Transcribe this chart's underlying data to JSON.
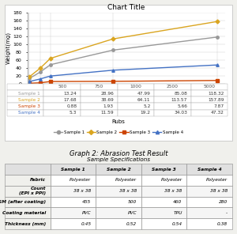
{
  "title": "Chart Title",
  "xlabel": "Rubs",
  "ylabel": "Weight(mg)",
  "x_values": [
    500,
    750,
    1000,
    2500,
    5000
  ],
  "samples": {
    "Sample 1": [
      13.24,
      28.96,
      47.99,
      85.08,
      118.32
    ],
    "Sample 2": [
      17.68,
      38.69,
      64.11,
      113.57,
      157.89
    ],
    "Sample 3": [
      0.88,
      1.93,
      5.2,
      5.66,
      7.87
    ],
    "Sample 4": [
      5.3,
      11.59,
      19.2,
      34.03,
      47.32
    ]
  },
  "colors": {
    "Sample 1": "#999999",
    "Sample 2": "#DAA520",
    "Sample 3": "#CC4400",
    "Sample 4": "#4472C4"
  },
  "markers": {
    "Sample 1": "o",
    "Sample 2": "D",
    "Sample 3": "s",
    "Sample 4": "^"
  },
  "ylim": [
    0,
    180
  ],
  "yticks": [
    0,
    20,
    40,
    60,
    80,
    100,
    120,
    140,
    160,
    180
  ],
  "inline_table": {
    "col_header": [
      "",
      "500",
      "750",
      "1000",
      "2500",
      "5000"
    ],
    "rows": [
      [
        "Sample 1",
        "13.24",
        "28.96",
        "47.99",
        "85.08",
        "118.32"
      ],
      [
        "Sample 2",
        "17.68",
        "38.69",
        "64.11",
        "113.57",
        "157.89"
      ],
      [
        "Sample 3",
        "0.88",
        "1.93",
        "5.2",
        "5.66",
        "7.87"
      ],
      [
        "Sample 4",
        "5.3",
        "11.59",
        "19.2",
        "34.03",
        "47.32"
      ]
    ]
  },
  "table_data": {
    "col_labels": [
      "",
      "Sample 1",
      "Sample 2",
      "Sample 3",
      "Sample 4"
    ],
    "rows": [
      [
        "Fabric",
        "Polyester",
        "Polyester",
        "Polyester",
        "Polyester"
      ],
      [
        "Count\n(EPI x PPI)",
        "38 x 38",
        "38 x 38",
        "38 x 38",
        "38 x 38"
      ],
      [
        "GSM (after coating)",
        "455",
        "500",
        "460",
        "280"
      ],
      [
        "Coating material",
        "PVC",
        "PVC",
        "TPU",
        "-"
      ],
      [
        "Thickness (mm)",
        "0.45",
        "0.52",
        "0.54",
        "0.38"
      ]
    ]
  },
  "graph2_title": "Graph 2: Abrasion Test Result",
  "table_title": "Sample Specifications",
  "bg_color": "#f0f0ec"
}
